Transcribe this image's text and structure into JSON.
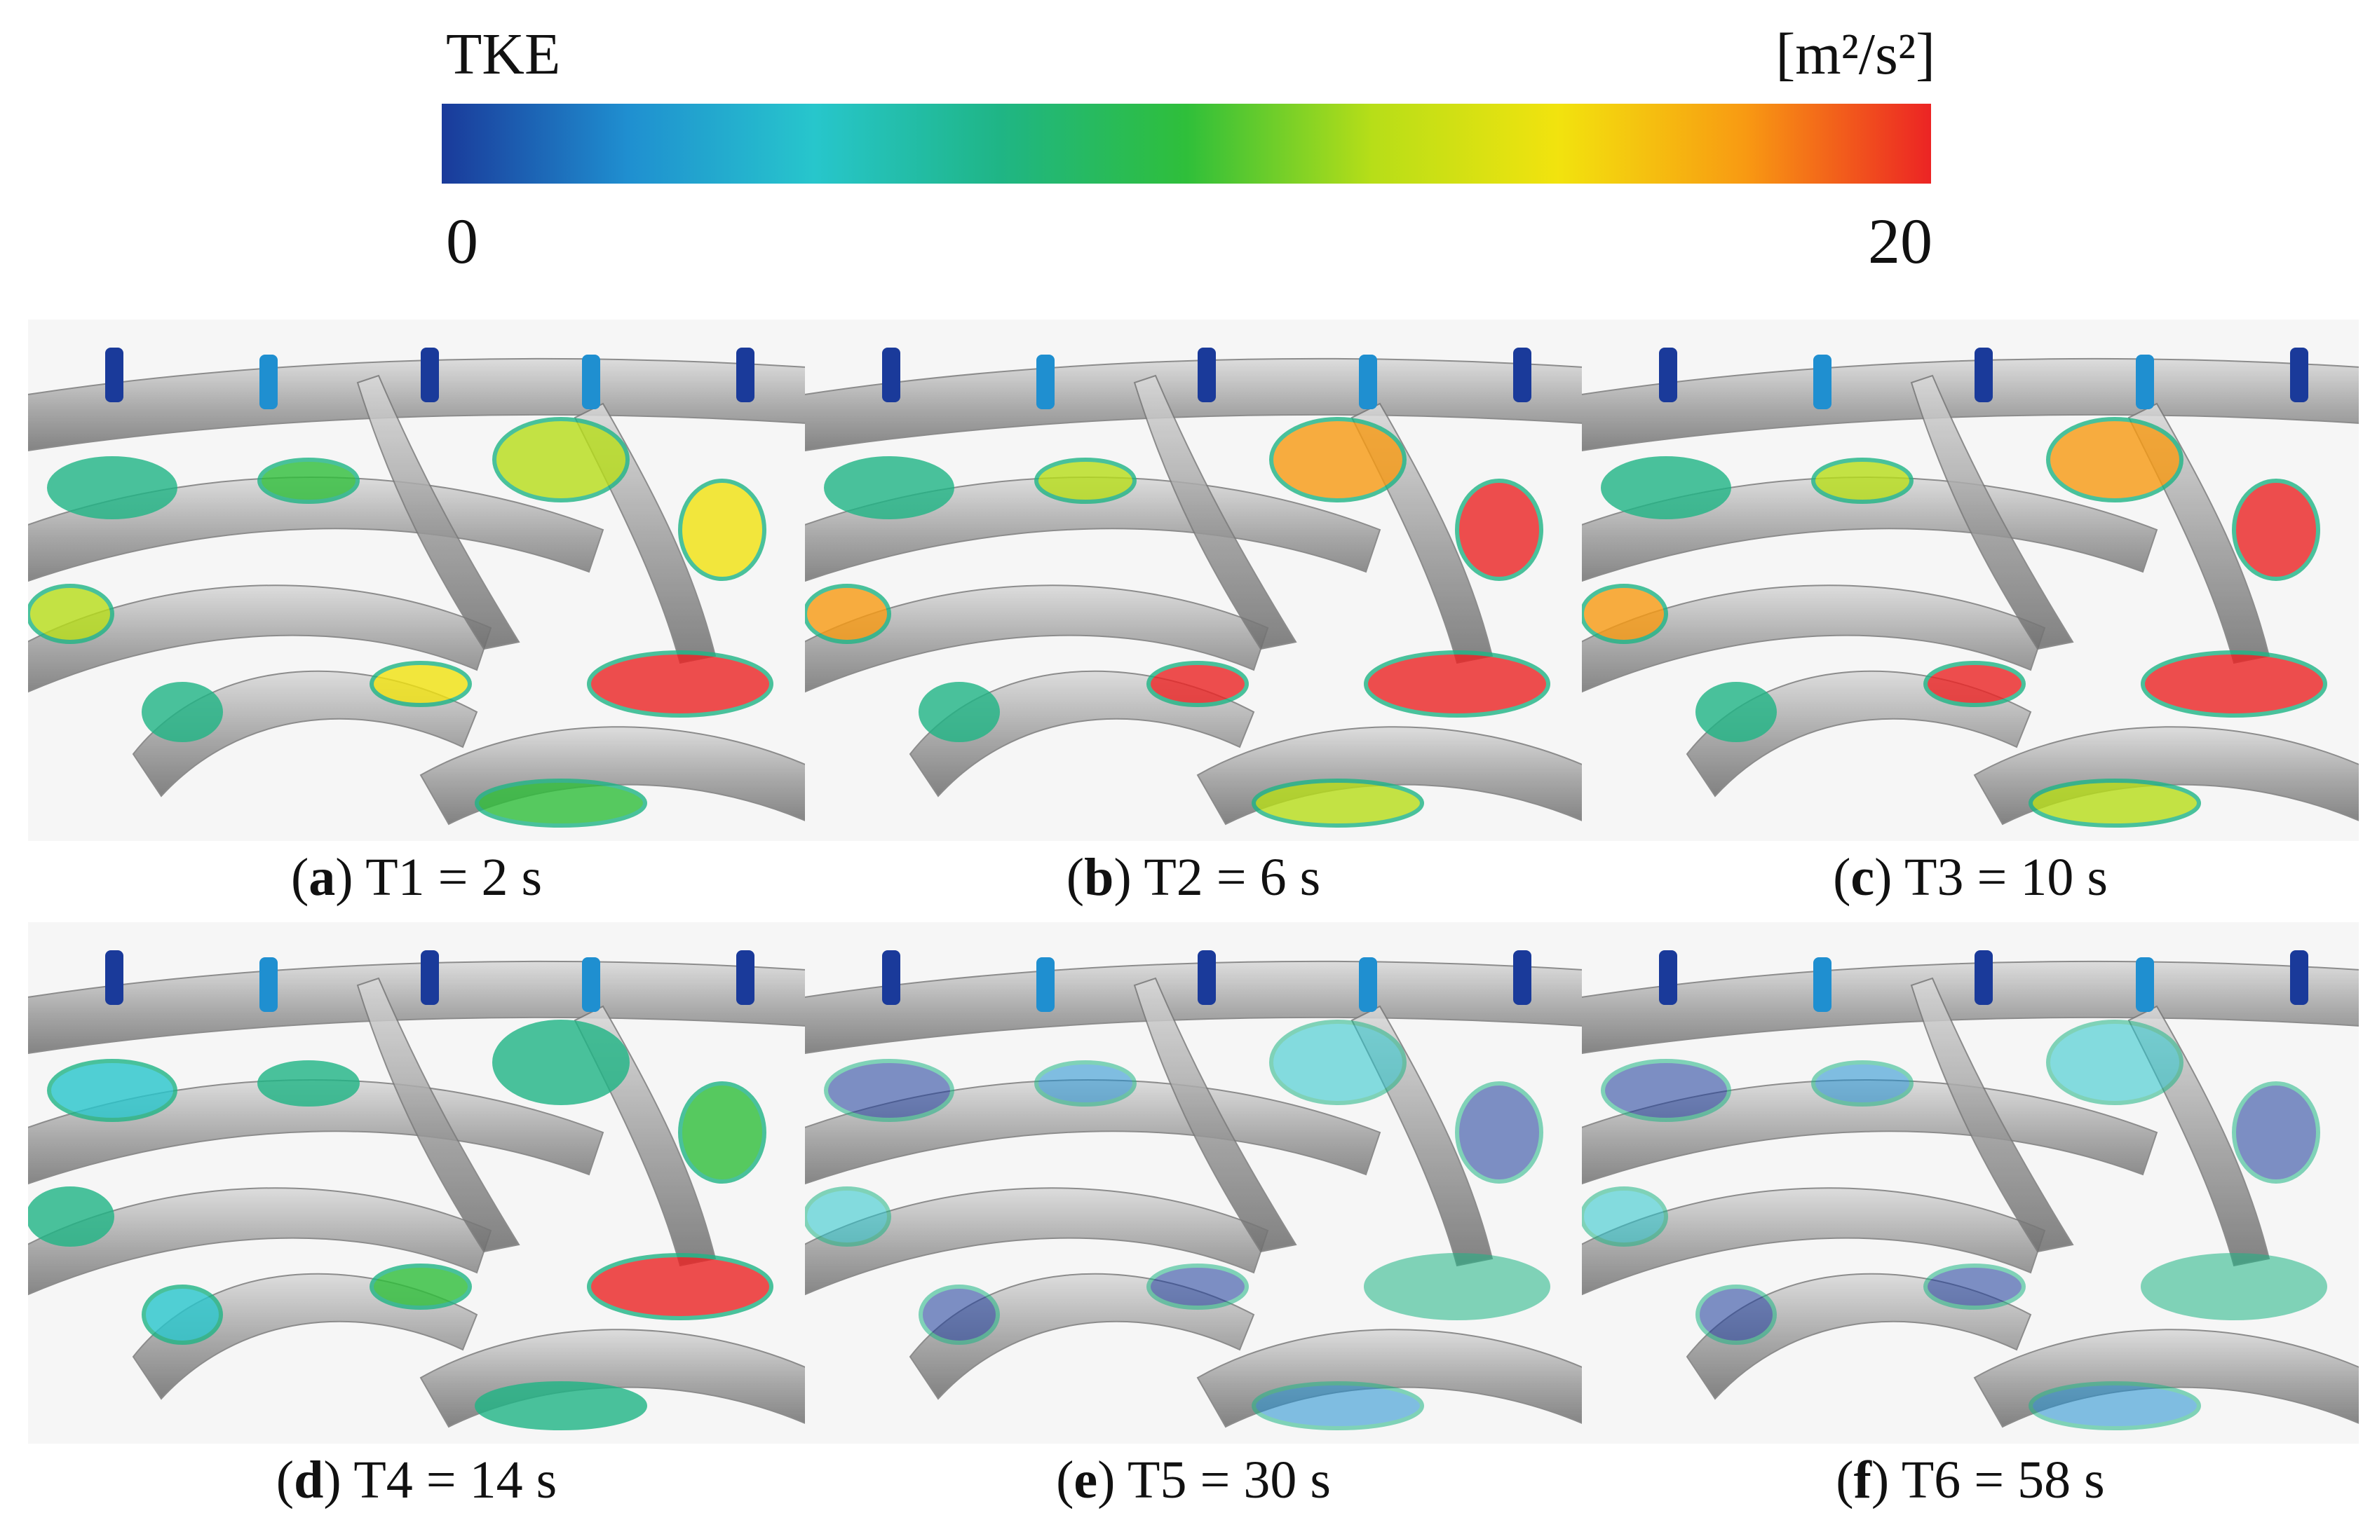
{
  "legend": {
    "title": "TKE",
    "unit": "[m²/s²]",
    "min": "0",
    "max": "20",
    "colormap": [
      "#1a3a9a",
      "#1f8fd0",
      "#27c6cc",
      "#1fb585",
      "#2fbf3a",
      "#b7de18",
      "#f2e30e",
      "#f89a12",
      "#ec2424"
    ]
  },
  "panels": [
    {
      "letter": "a",
      "label": "T1 = 2 s",
      "hot": "high"
    },
    {
      "letter": "b",
      "label": "T2 = 6 s",
      "hot": "very-high"
    },
    {
      "letter": "c",
      "label": "T3 = 10 s",
      "hot": "very-high"
    },
    {
      "letter": "d",
      "label": "T4 = 14 s",
      "hot": "medium"
    },
    {
      "letter": "e",
      "label": "T5 = 30 s",
      "hot": "low"
    },
    {
      "letter": "f",
      "label": "T6 = 58 s",
      "hot": "low"
    }
  ]
}
